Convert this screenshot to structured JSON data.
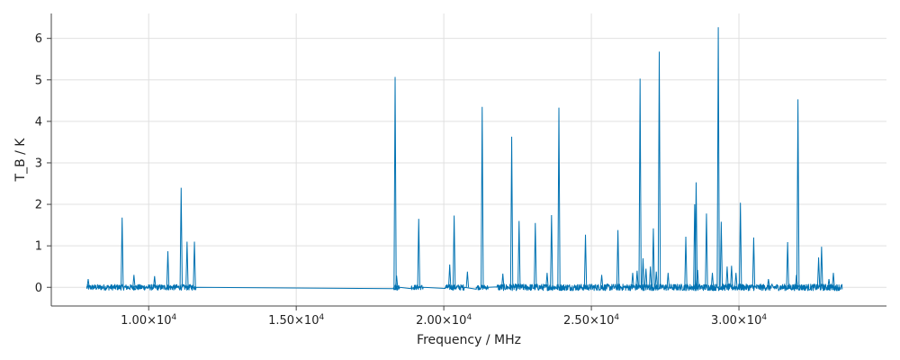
{
  "chart_data": {
    "type": "line",
    "title": "",
    "xlabel": "Frequency / MHz",
    "ylabel": "T_B / K",
    "xlim": [
      6700,
      35000
    ],
    "ylim": [
      -0.45,
      6.6
    ],
    "grid": true,
    "legend": "none",
    "line_color": "#0072b2",
    "x_ticks": [
      {
        "value": 10000,
        "mantissa": "1.00",
        "times": "×10",
        "exp": "4"
      },
      {
        "value": 15000,
        "mantissa": "1.50",
        "times": "×10",
        "exp": "4"
      },
      {
        "value": 20000,
        "mantissa": "2.00",
        "times": "×10",
        "exp": "4"
      },
      {
        "value": 25000,
        "mantissa": "2.50",
        "times": "×10",
        "exp": "4"
      },
      {
        "value": 30000,
        "mantissa": "3.00",
        "times": "×10",
        "exp": "4"
      }
    ],
    "y_ticks": [
      {
        "value": 0,
        "label": "0"
      },
      {
        "value": 1,
        "label": "1"
      },
      {
        "value": 2,
        "label": "2"
      },
      {
        "value": 3,
        "label": "3"
      },
      {
        "value": 4,
        "label": "4"
      },
      {
        "value": 5,
        "label": "5"
      },
      {
        "value": 6,
        "label": "6"
      }
    ],
    "noise_segments": [
      {
        "x_start": 7900,
        "x_end": 11600,
        "amplitude": 0.07
      },
      {
        "x_start": 18300,
        "x_end": 18500,
        "amplitude": 0.07
      },
      {
        "x_start": 18900,
        "x_end": 19300,
        "amplitude": 0.06
      },
      {
        "x_start": 20050,
        "x_end": 20700,
        "amplitude": 0.07
      },
      {
        "x_start": 21100,
        "x_end": 21500,
        "amplitude": 0.06
      },
      {
        "x_start": 21800,
        "x_end": 33500,
        "amplitude": 0.08
      }
    ],
    "baseline_segments": [
      {
        "x_start": 11600,
        "x_end": 18300,
        "y": 0.0
      },
      {
        "x_start": 18500,
        "x_end": 18900,
        "y": 0.0
      },
      {
        "x_start": 19300,
        "x_end": 20050,
        "y": 0.0
      },
      {
        "x_start": 20700,
        "x_end": 21100,
        "y": 0.0
      },
      {
        "x_start": 21500,
        "x_end": 21800,
        "y": 0.0
      }
    ],
    "series": [
      {
        "x": [
          7950,
          9100,
          9500,
          10200,
          10650,
          11100,
          11300,
          11550,
          18350,
          18400,
          19150,
          20200,
          20350,
          20800,
          21300,
          22000,
          22300,
          22550,
          23100,
          23500,
          23650,
          23900,
          24800,
          25350,
          25900,
          26400,
          26550,
          26650,
          26750,
          26850,
          27000,
          27100,
          27200,
          27300,
          27600,
          28200,
          28500,
          28550,
          28600,
          28900,
          29100,
          29300,
          29400,
          29600,
          29750,
          29900,
          30050,
          30500,
          31000,
          31650,
          31950,
          32000,
          32700,
          32800,
          33050,
          33200
        ],
        "y": [
          0.2,
          1.68,
          0.3,
          0.27,
          0.87,
          2.4,
          1.1,
          1.1,
          5.07,
          0.28,
          1.65,
          0.55,
          1.73,
          0.38,
          4.35,
          0.33,
          3.63,
          1.6,
          1.55,
          0.35,
          1.74,
          4.33,
          1.27,
          0.3,
          1.38,
          0.35,
          0.4,
          5.03,
          0.7,
          0.45,
          0.5,
          1.42,
          0.38,
          5.68,
          0.35,
          1.22,
          2.0,
          2.53,
          0.42,
          1.78,
          0.35,
          6.27,
          1.58,
          0.5,
          0.52,
          0.35,
          2.04,
          1.2,
          0.2,
          1.09,
          0.3,
          4.53,
          0.72,
          0.98,
          0.2,
          0.35
        ]
      }
    ]
  }
}
